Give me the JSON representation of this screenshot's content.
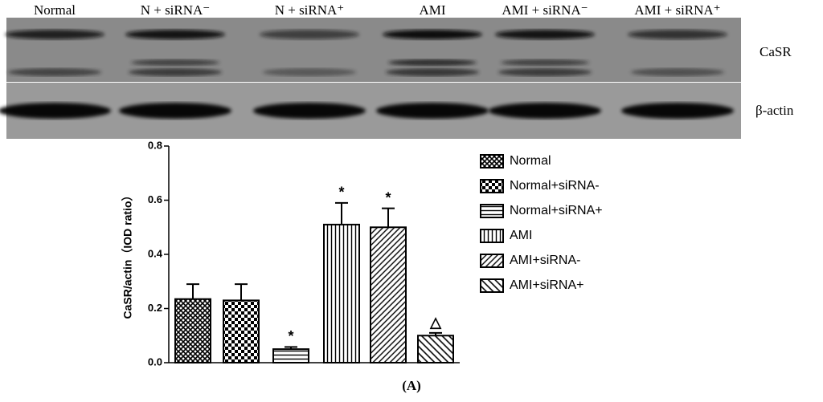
{
  "blot": {
    "lanes": [
      "Normal",
      "N + siRNA⁻",
      "N + siRNA⁺",
      "AMI",
      "AMI + siRNA⁻",
      "AMI + siRNA⁺"
    ],
    "rows": [
      "CaSR",
      "β-actin"
    ]
  },
  "panel_label": "(A)",
  "chart_data": {
    "type": "bar",
    "y_label": "CaSR/actin（IOD ratio）",
    "categories": [
      "Normal",
      "Normal+siRNA-",
      "Normal+siRNA+",
      "AMI",
      "AMI+siRNA-",
      "AMI+siRNA+"
    ],
    "values": [
      0.235,
      0.23,
      0.05,
      0.51,
      0.5,
      0.1
    ],
    "errors": [
      0.055,
      0.06,
      0.008,
      0.08,
      0.07,
      0.01
    ],
    "annotations": [
      null,
      null,
      "*",
      "*",
      "*",
      "△"
    ],
    "patterns": [
      "crosshatch",
      "checker",
      "horizontal",
      "vertical",
      "diagonal",
      "diagonal-back"
    ],
    "color": "#000000",
    "ylim": [
      0,
      0.8
    ],
    "yticks": [
      {
        "value": 0,
        "label": "0.0"
      },
      0.2,
      0.4,
      0.6,
      0.8
    ],
    "legend": "right"
  }
}
